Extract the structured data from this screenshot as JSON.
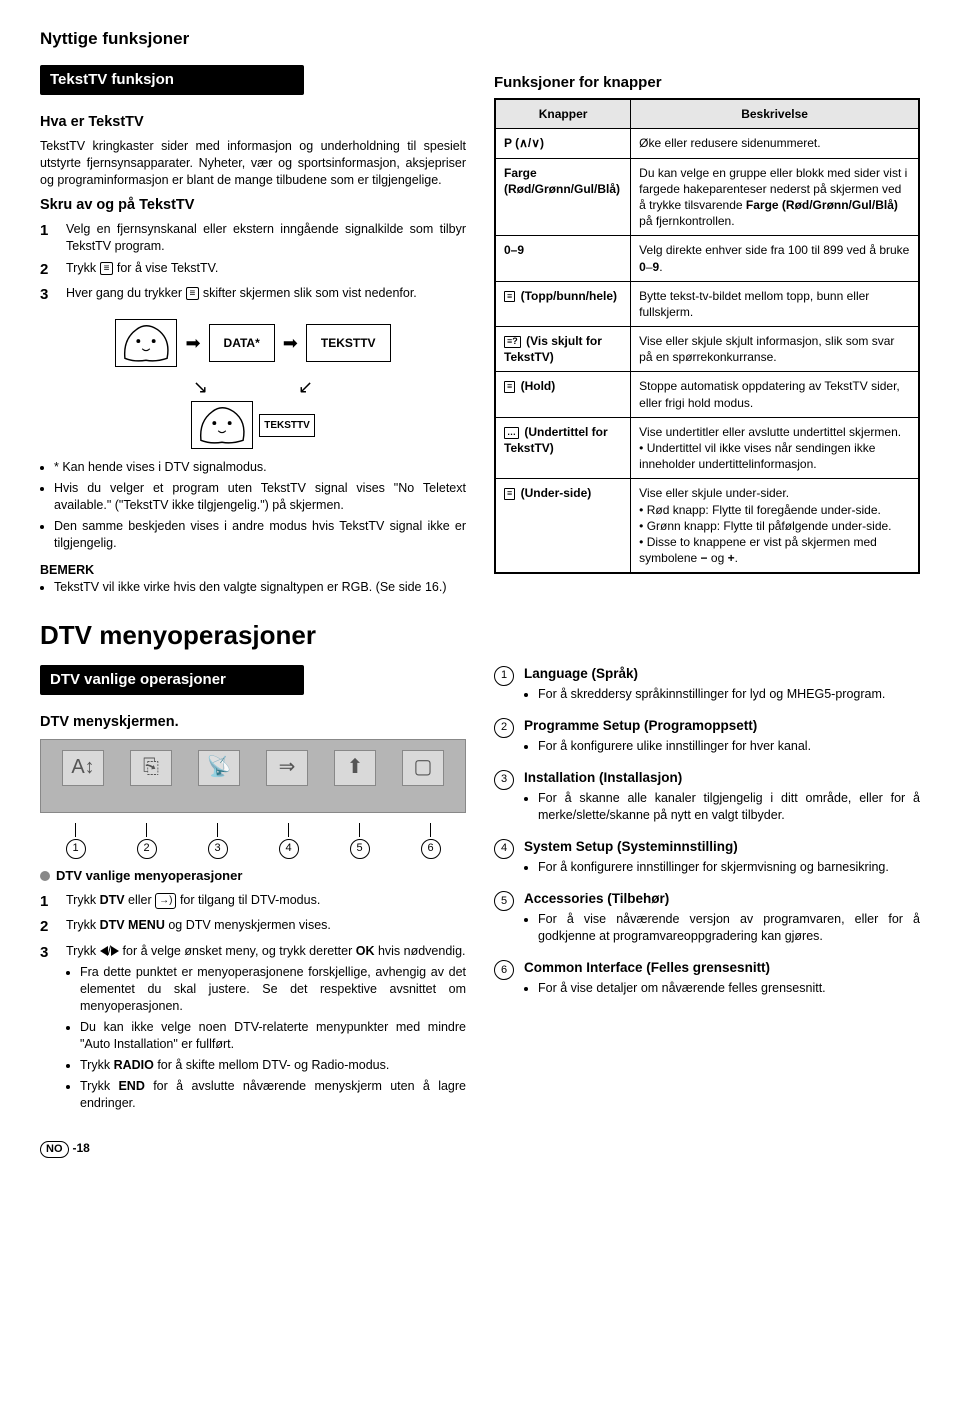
{
  "page_title": "Nyttige funksjoner",
  "left": {
    "section1_bar": "TekstTV funksjon",
    "hva_title": "Hva er TekstTV",
    "hva_p1": "TekstTV kringkaster sider med informasjon og underholdning til spesielt utstyrte fjernsynsapparater. Nyheter, vær og sportsinformasjon, aksjepriser og programinformasjon er blant de mange tilbudene som er tilgjengelige.",
    "skru_title": "Skru av og på TekstTV",
    "steps": [
      "Velg en fjernsynskanal eller ekstern inngående signalkilde som tilbyr TekstTV program.",
      "Trykk ≡ for å vise TekstTV.",
      "Hver gang du trykker ≡ skifter skjermen slik som vist nedenfor."
    ],
    "flow": {
      "data": "DATA*",
      "teksttv": "TEKSTTV"
    },
    "notes": [
      "Kan hende vises i DTV signalmodus.",
      "Hvis du velger et program uten TekstTV signal vises \"No Teletext available.\" (\"TekstTV ikke tilgjengelig.\") på skjermen.",
      "Den samme beskjeden vises i andre modus hvis TekstTV signal ikke er tilgjengelig."
    ],
    "bemerk_label": "BEMERK",
    "bemerk_text": "TekstTV vil ikke virke hvis den valgte signaltypen er RGB. (Se side 16.)"
  },
  "right": {
    "title": "Funksjoner for knapper",
    "headers": [
      "Knapper",
      "Beskrivelse"
    ],
    "rows": [
      {
        "k": "P (∧/∨)",
        "d": "Øke eller redusere sidenummeret."
      },
      {
        "k": "Farge (Rød/Grønn/Gul/Blå)",
        "d": "Du kan velge en gruppe eller blokk med sider vist i fargede hakeparenteser nederst på skjermen ved å trykke tilsvarende Farge (Rød/Grønn/Gul/Blå) på fjernkontrollen."
      },
      {
        "k": "0–9",
        "d": "Velg direkte enhver side fra 100 til 899 ved å bruke 0–9."
      },
      {
        "k": "≡ (Topp/bunn/hele)",
        "d": "Bytte tekst-tv-bildet mellom topp, bunn eller fullskjerm."
      },
      {
        "k": "≡? (Vis skjult for TekstTV)",
        "d": "Vise eller skjule skjult informasjon, slik som svar på en spørrekonkurranse."
      },
      {
        "k": "≡ (Hold)",
        "d": "Stoppe automatisk oppdatering av TekstTV sider, eller frigi hold modus."
      },
      {
        "k": "… (Undertittel for TekstTV)",
        "d": "Vise undertitler eller avslutte undertittel skjermen.\n• Undertittel vil ikke vises når sendingen ikke inneholder undertittelinformasjon."
      },
      {
        "k": "≡ (Under-side)",
        "d": "Vise eller skjule under-sider.\n• Rød knapp: Flytte til foregående under-side.\n• Grønn knapp: Flytte til påfølgende under-side.\n• Disse to knappene er vist på skjermen med symbolene − og +."
      }
    ]
  },
  "dtv": {
    "heading": "DTV menyoperasjoner",
    "left": {
      "bar": "DTV vanlige operasjoner",
      "sub": "DTV menyskjermen.",
      "menu_icons_glyphs": [
        "A↕",
        "⎘",
        "📡",
        "⇒",
        "⬆",
        "▢"
      ],
      "circles": [
        "1",
        "2",
        "3",
        "4",
        "5",
        "6"
      ],
      "subop": "DTV vanlige menyoperasjoner",
      "steps": [
        {
          "t": "Trykk DTV eller → for tilgang til DTV-modus.",
          "plain": [
            "Trykk ",
            "DTV",
            " eller ",
            "__INPUT__",
            " for tilgang til DTV-modus."
          ]
        },
        {
          "t": "Trykk DTV MENU og DTV menyskjermen vises.",
          "plain": [
            "Trykk ",
            "DTV MENU",
            " og DTV menyskjermen vises."
          ]
        },
        {
          "t": "Trykk ◀/▶ for å velge ønsket meny, og trykk deretter OK hvis nødvendig.",
          "plain": [
            "Trykk ",
            "__LEFT__",
            "/",
            "__RIGHT__",
            " for å velge ønsket meny, og trykk deretter ",
            "OK",
            " hvis nødvendig."
          ]
        }
      ],
      "step3_bullets": [
        "Fra dette punktet er menyoperasjonene forskjellige, avhengig av det elementet du skal justere. Se det respektive avsnittet om menyoperasjonen.",
        "Du kan ikke velge noen DTV-relaterte menypunkter med mindre \"Auto Installation\" er fullført.",
        "Trykk RADIO for å skifte mellom DTV- og Radio-modus.",
        "Trykk END for å avslutte nåværende menyskjerm uten å lagre endringer."
      ]
    },
    "right": [
      {
        "n": "1",
        "h": "Language (Språk)",
        "b": [
          "For å skreddersy språkinnstillinger for lyd og MHEG5-program."
        ]
      },
      {
        "n": "2",
        "h": "Programme Setup (Programoppsett)",
        "b": [
          "For å konfigurere ulike innstillinger for hver kanal."
        ]
      },
      {
        "n": "3",
        "h": "Installation (Installasjon)",
        "b": [
          "For å skanne alle kanaler tilgjengelig i ditt område, eller for å merke/slette/skanne på nytt en valgt tilbyder."
        ]
      },
      {
        "n": "4",
        "h": "System Setup (Systeminnstilling)",
        "b": [
          "For å konfigurere innstillinger for skjermvisning og barnesikring."
        ]
      },
      {
        "n": "5",
        "h": "Accessories (Tilbehør)",
        "b": [
          "For å vise nåværende versjon av programvaren, eller for å godkjenne at programvareoppgradering kan gjøres."
        ]
      },
      {
        "n": "6",
        "h": "Common Interface (Felles grensesnitt)",
        "b": [
          "For å vise detaljer om nåværende felles grensesnitt."
        ]
      }
    ]
  },
  "footer": {
    "no": "NO",
    "page": "-18"
  },
  "colors": {
    "bar_bg": "#000000",
    "bar_fg": "#ffffff",
    "table_header_bg": "#e6e6e6",
    "menu_bg": "#b5b5b5",
    "menu_icon_bg": "#d9d9d9"
  }
}
